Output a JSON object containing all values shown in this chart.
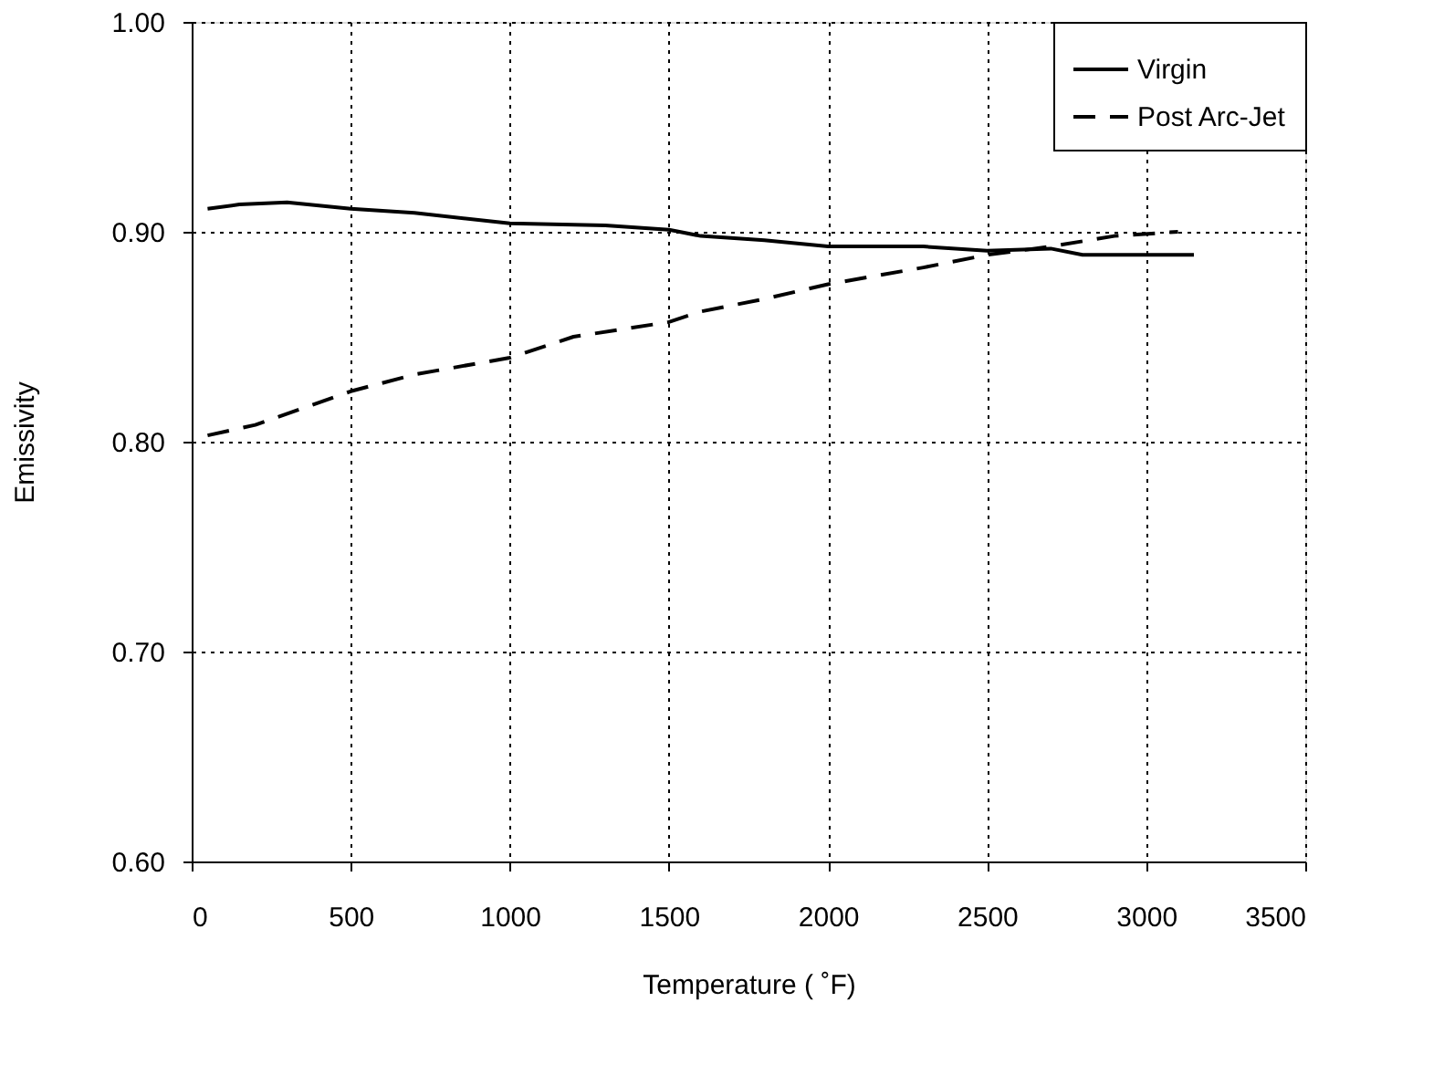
{
  "chart_data": {
    "type": "line",
    "xlabel": "Temperature ( ˚F)",
    "ylabel": "Emissivity",
    "xlim": [
      0,
      3500
    ],
    "xticks": [
      0,
      500,
      1000,
      1500,
      2000,
      2500,
      3000,
      3500
    ],
    "ylim": [
      0.6,
      1.0
    ],
    "yticks": [
      {
        "value": 0.6,
        "label": "0.60"
      },
      {
        "value": 0.7,
        "label": "0.70"
      },
      {
        "value": 0.8,
        "label": "0.80"
      },
      {
        "value": 0.9,
        "label": "0.90"
      },
      {
        "value": 1.0,
        "label": "1.00"
      }
    ],
    "grid": true,
    "legend": "top right",
    "marker": "none",
    "series": [
      {
        "name": "Virgin",
        "color": "#000000",
        "line_style": "solid",
        "x": [
          50,
          150,
          300,
          500,
          700,
          1000,
          1300,
          1500,
          1600,
          1800,
          2000,
          2300,
          2500,
          2700,
          2800,
          3150
        ],
        "values": [
          0.911,
          0.913,
          0.914,
          0.911,
          0.909,
          0.904,
          0.903,
          0.901,
          0.898,
          0.896,
          0.893,
          0.893,
          0.891,
          0.892,
          0.889,
          0.889
        ]
      },
      {
        "name": "Post Arc-Jet",
        "color": "#000000",
        "line_style": "dashed",
        "x": [
          50,
          200,
          500,
          700,
          1000,
          1200,
          1500,
          1600,
          1800,
          2000,
          2300,
          2500,
          2700,
          2900,
          3100
        ],
        "values": [
          0.803,
          0.808,
          0.824,
          0.832,
          0.84,
          0.85,
          0.857,
          0.862,
          0.868,
          0.875,
          0.883,
          0.889,
          0.893,
          0.898,
          0.9
        ]
      }
    ]
  }
}
